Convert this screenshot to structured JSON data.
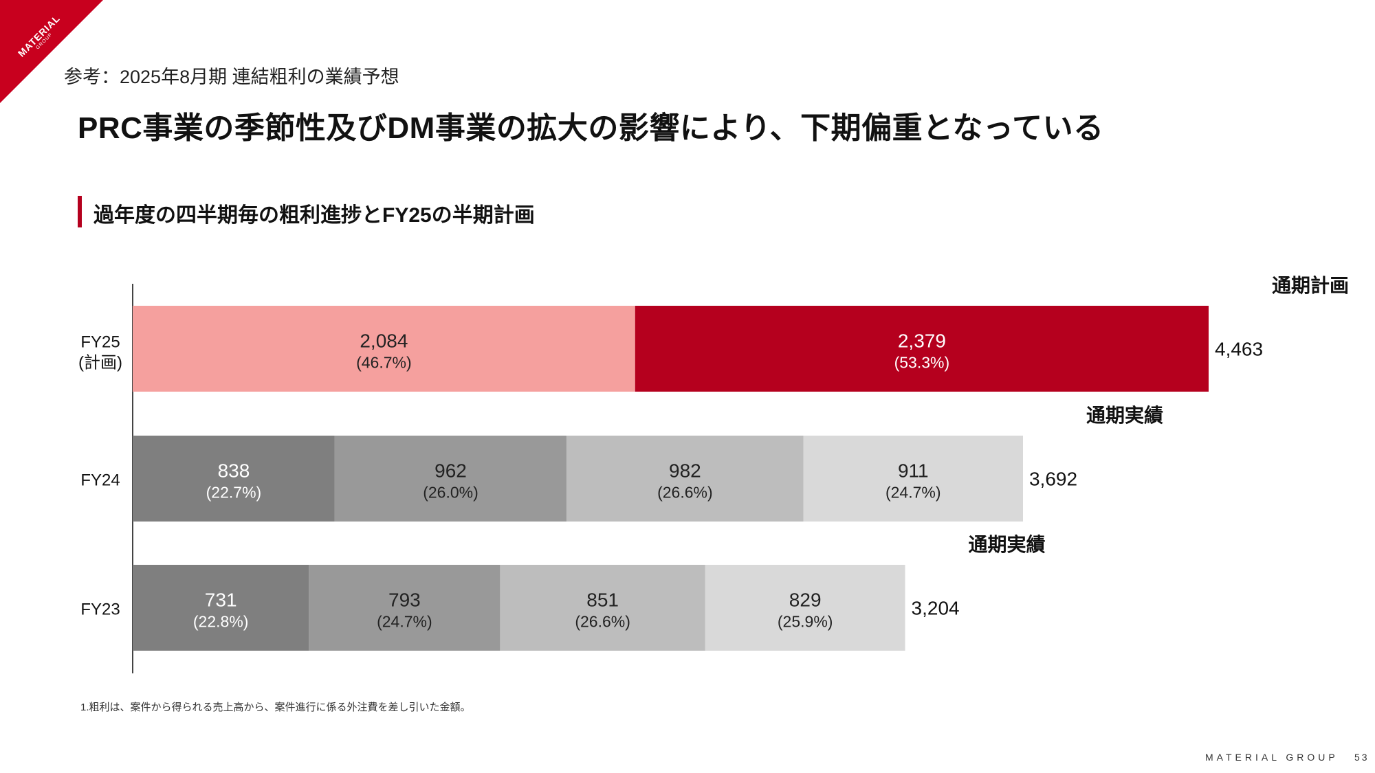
{
  "brand": {
    "logo_main": "MATERIAL",
    "logo_sub": "GROUP",
    "accent": "#b5001e"
  },
  "kicker": "参考：2025年8月期 連結粗利の業績予想",
  "headline": "PRC事業の季節性及びDM事業の拡大の影響により、下期偏重となっている",
  "section_title": "過年度の四半期毎の粗利進捗とFY25の半期計画",
  "chart_data": {
    "type": "bar",
    "orientation": "horizontal",
    "stacked": true,
    "rows": [
      {
        "label": "FY25\n(計画)",
        "segments": [
          {
            "value": 2084,
            "label": "2,084",
            "pct": "(46.7%)",
            "color": "#f5a09e",
            "text_color": "#222222"
          },
          {
            "value": 2379,
            "label": "2,379",
            "pct": "(53.3%)",
            "color": "#b5001e",
            "text_color": "#ffffff"
          }
        ],
        "total": 4463,
        "total_label": "4,463",
        "caption": "通期計画"
      },
      {
        "label": "FY24",
        "segments": [
          {
            "value": 838,
            "label": "838",
            "pct": "(22.7%)",
            "color": "#7f7f7f",
            "text_color": "#ffffff"
          },
          {
            "value": 962,
            "label": "962",
            "pct": "(26.0%)",
            "color": "#999999",
            "text_color": "#222222"
          },
          {
            "value": 982,
            "label": "982",
            "pct": "(26.6%)",
            "color": "#bdbdbd",
            "text_color": "#222222"
          },
          {
            "value": 911,
            "label": "911",
            "pct": "(24.7%)",
            "color": "#d9d9d9",
            "text_color": "#222222"
          }
        ],
        "total": 3692,
        "total_label": "3,692",
        "caption": "通期実績"
      },
      {
        "label": "FY23",
        "segments": [
          {
            "value": 731,
            "label": "731",
            "pct": "(22.8%)",
            "color": "#7f7f7f",
            "text_color": "#ffffff"
          },
          {
            "value": 793,
            "label": "793",
            "pct": "(24.7%)",
            "color": "#999999",
            "text_color": "#222222"
          },
          {
            "value": 851,
            "label": "851",
            "pct": "(26.6%)",
            "color": "#bdbdbd",
            "text_color": "#222222"
          },
          {
            "value": 829,
            "label": "829",
            "pct": "(25.9%)",
            "color": "#d9d9d9",
            "text_color": "#222222"
          }
        ],
        "total": 3204,
        "total_label": "3,204",
        "caption": "通期実績"
      }
    ],
    "xlim": [
      0,
      4463
    ],
    "grid": false
  },
  "footnote": "1.粗利は、案件から得られる売上高から、案件進行に係る外注費を差し引いた金額。",
  "footer": {
    "brand": "MATERIAL GROUP",
    "page": "53"
  }
}
